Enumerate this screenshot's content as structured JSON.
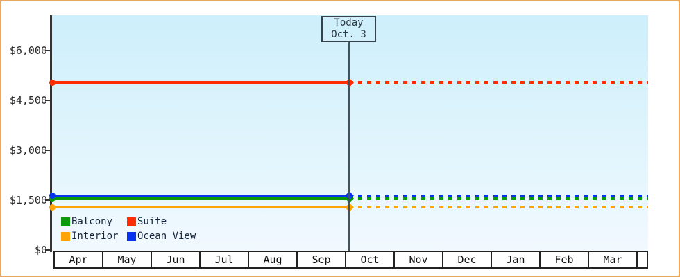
{
  "chart_data": {
    "type": "line",
    "title": "",
    "x_categories": [
      "Apr",
      "May",
      "Jun",
      "Jul",
      "Aug",
      "Sep",
      "Oct",
      "Nov",
      "Dec",
      "Jan",
      "Feb",
      "Mar"
    ],
    "y_ticks": [
      {
        "label": "$0",
        "value": 0
      },
      {
        "label": "$1,500",
        "value": 1500
      },
      {
        "label": "$3,000",
        "value": 3000
      },
      {
        "label": "$4,500",
        "value": 4500
      },
      {
        "label": "$6,000",
        "value": 6000
      }
    ],
    "ylim": [
      0,
      7050
    ],
    "grid": false,
    "values_estimated_from_axis": true,
    "series": [
      {
        "name": "Balcony",
        "color": "#0a9a0a",
        "value": 1550,
        "segment_before_today": "solid",
        "segment_after_today": "dashed"
      },
      {
        "name": "Suite",
        "color": "#fe2e00",
        "value": 5040,
        "segment_before_today": "solid",
        "segment_after_today": "dashed"
      },
      {
        "name": "Interior",
        "color": "#ffa408",
        "value": 1290,
        "segment_before_today": "solid",
        "segment_after_today": "dashed"
      },
      {
        "name": "Ocean View",
        "color": "#0733ee",
        "value": 1630,
        "segment_before_today": "solid",
        "segment_after_today": "dashed"
      }
    ],
    "legend": [
      {
        "label": "Balcony",
        "color": "#0a9a0a"
      },
      {
        "label": "Suite",
        "color": "#fe2e00"
      },
      {
        "label": "Interior",
        "color": "#ffa408"
      },
      {
        "label": "Ocean View",
        "color": "#0733ee"
      }
    ],
    "legend_position": "bottom-left-inside-plot",
    "today_annotation": {
      "line1": "Today",
      "line2": "Oct. 3",
      "month": "Oct",
      "day": 3
    }
  },
  "frame": {
    "border_color": "#eda85f",
    "plot_bg_top": "#cdeffb",
    "plot_bg_bottom": "#f1f9fe"
  }
}
